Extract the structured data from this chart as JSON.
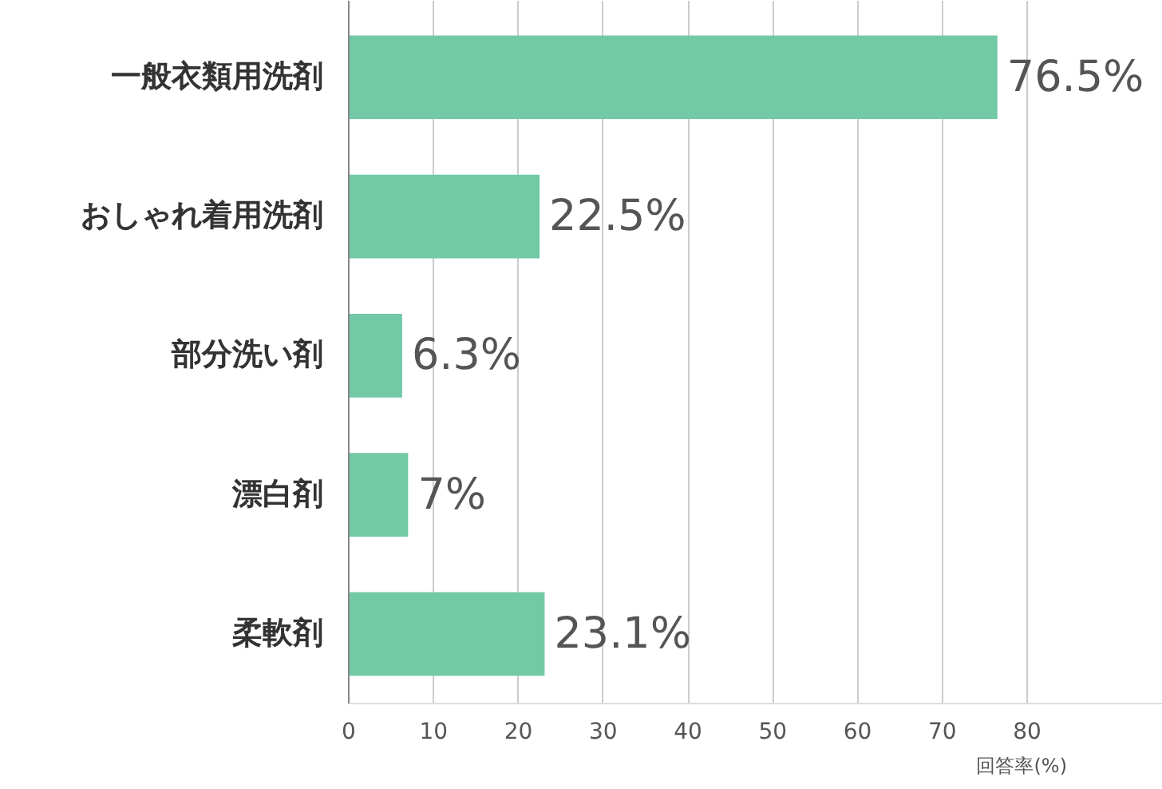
{
  "chart_data": {
    "type": "bar",
    "orientation": "horizontal",
    "categories": [
      "一般衣類用洗剤",
      "おしゃれ着用洗剤",
      "部分洗い剤",
      "漂白剤",
      "柔軟剤"
    ],
    "values": [
      76.5,
      22.5,
      6.3,
      7,
      23.1
    ],
    "value_labels": [
      "76.5%",
      "22.5%",
      "6.3%",
      "7%",
      "23.1%"
    ],
    "color": "#72c9a5",
    "xlim": [
      0,
      96
    ],
    "xticks": [
      0,
      10,
      20,
      30,
      40,
      50,
      60,
      70,
      80
    ],
    "grid": "x",
    "xlabel": "回答率(%)"
  }
}
